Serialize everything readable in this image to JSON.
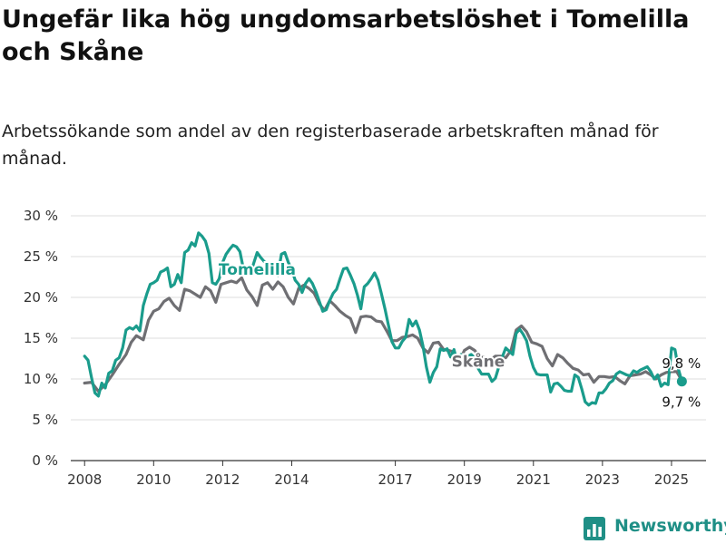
{
  "header": {
    "title": "Ungefär lika hög ungdomsarbetslöshet i Tomelilla och Skåne",
    "subtitle": "Arbetssökande som andel av den registerbaserade arbetskraften månad för månad."
  },
  "brand": {
    "name": "Newsworthy",
    "icon": "bar-chart-icon",
    "color": "#1f8f86"
  },
  "chart_data": {
    "type": "line",
    "y_ticks": [
      "0 %",
      "5 %",
      "10 %",
      "15 %",
      "20 %",
      "25 %",
      "30 %"
    ],
    "y_tick_values": [
      0,
      5,
      10,
      15,
      20,
      25,
      30
    ],
    "ylim": [
      0,
      30
    ],
    "x_ticks": [
      "2008",
      "2010",
      "2012",
      "2014",
      "2017",
      "2019",
      "2021",
      "2023",
      "2025"
    ],
    "x_tick_values": [
      2008.0,
      2010.0,
      2012.0,
      2014.0,
      2017.0,
      2019.0,
      2021.0,
      2023.0,
      2025.0
    ],
    "xlim": [
      2007.6,
      2026.0
    ],
    "grid": true,
    "series": [
      {
        "name": "Skåne",
        "color": "#6f6f73",
        "points": [
          [
            2008.0,
            9.5
          ],
          [
            2008.2,
            9.6
          ],
          [
            2008.4,
            8.5
          ],
          [
            2008.6,
            9.3
          ],
          [
            2008.8,
            10.5
          ],
          [
            2009.0,
            11.8
          ],
          [
            2009.2,
            13.0
          ],
          [
            2009.35,
            14.5
          ],
          [
            2009.5,
            15.3
          ],
          [
            2009.7,
            14.8
          ],
          [
            2009.85,
            17.2
          ],
          [
            2010.0,
            18.3
          ],
          [
            2010.15,
            18.6
          ],
          [
            2010.3,
            19.5
          ],
          [
            2010.45,
            19.9
          ],
          [
            2010.6,
            19.0
          ],
          [
            2010.75,
            18.4
          ],
          [
            2010.9,
            21.0
          ],
          [
            2011.05,
            20.8
          ],
          [
            2011.2,
            20.4
          ],
          [
            2011.35,
            20.0
          ],
          [
            2011.5,
            21.3
          ],
          [
            2011.65,
            20.8
          ],
          [
            2011.8,
            19.4
          ],
          [
            2011.95,
            21.6
          ],
          [
            2012.1,
            21.8
          ],
          [
            2012.25,
            22.0
          ],
          [
            2012.4,
            21.8
          ],
          [
            2012.55,
            22.4
          ],
          [
            2012.7,
            20.9
          ],
          [
            2012.85,
            20.1
          ],
          [
            2013.0,
            19.0
          ],
          [
            2013.15,
            21.5
          ],
          [
            2013.3,
            21.8
          ],
          [
            2013.45,
            21.0
          ],
          [
            2013.6,
            21.9
          ],
          [
            2013.75,
            21.3
          ],
          [
            2013.9,
            20.0
          ],
          [
            2014.05,
            19.2
          ],
          [
            2014.2,
            21.1
          ],
          [
            2014.35,
            21.5
          ],
          [
            2014.5,
            21.1
          ],
          [
            2014.65,
            20.5
          ],
          [
            2014.8,
            19.2
          ],
          [
            2014.95,
            18.4
          ],
          [
            2015.1,
            19.6
          ],
          [
            2015.25,
            19.0
          ],
          [
            2015.4,
            18.3
          ],
          [
            2015.55,
            17.8
          ],
          [
            2015.7,
            17.4
          ],
          [
            2015.85,
            15.7
          ],
          [
            2016.0,
            17.6
          ],
          [
            2016.15,
            17.7
          ],
          [
            2016.3,
            17.6
          ],
          [
            2016.45,
            17.1
          ],
          [
            2016.6,
            17.0
          ],
          [
            2016.75,
            15.9
          ],
          [
            2016.9,
            14.7
          ],
          [
            2017.05,
            14.7
          ],
          [
            2017.2,
            15.1
          ],
          [
            2017.35,
            15.2
          ],
          [
            2017.5,
            15.4
          ],
          [
            2017.65,
            15.0
          ],
          [
            2017.8,
            13.8
          ],
          [
            2017.95,
            13.2
          ],
          [
            2018.1,
            14.4
          ],
          [
            2018.25,
            14.5
          ],
          [
            2018.4,
            13.6
          ],
          [
            2018.55,
            13.5
          ],
          [
            2018.7,
            13.3
          ],
          [
            2018.85,
            12.1
          ],
          [
            2019.0,
            13.5
          ],
          [
            2019.15,
            13.9
          ],
          [
            2019.3,
            13.5
          ],
          [
            2019.45,
            12.7
          ],
          [
            2019.6,
            12.6
          ],
          [
            2019.75,
            12.3
          ],
          [
            2019.9,
            12.8
          ],
          [
            2020.05,
            12.8
          ],
          [
            2020.2,
            12.6
          ],
          [
            2020.35,
            13.5
          ],
          [
            2020.5,
            16.0
          ],
          [
            2020.65,
            16.5
          ],
          [
            2020.8,
            15.8
          ],
          [
            2020.95,
            14.5
          ],
          [
            2021.1,
            14.3
          ],
          [
            2021.25,
            14.0
          ],
          [
            2021.4,
            12.5
          ],
          [
            2021.55,
            11.6
          ],
          [
            2021.7,
            13.0
          ],
          [
            2021.85,
            12.6
          ],
          [
            2022.0,
            11.9
          ],
          [
            2022.15,
            11.3
          ],
          [
            2022.3,
            11.1
          ],
          [
            2022.45,
            10.5
          ],
          [
            2022.6,
            10.6
          ],
          [
            2022.75,
            9.6
          ],
          [
            2022.9,
            10.3
          ],
          [
            2023.05,
            10.3
          ],
          [
            2023.2,
            10.2
          ],
          [
            2023.35,
            10.3
          ],
          [
            2023.5,
            9.8
          ],
          [
            2023.65,
            9.4
          ],
          [
            2023.8,
            10.4
          ],
          [
            2023.95,
            10.5
          ],
          [
            2024.1,
            10.6
          ],
          [
            2024.25,
            10.9
          ],
          [
            2024.4,
            10.5
          ],
          [
            2024.55,
            10.0
          ],
          [
            2024.7,
            10.5
          ],
          [
            2024.85,
            10.8
          ],
          [
            2025.0,
            10.9
          ],
          [
            2025.15,
            10.9
          ],
          [
            2025.3,
            9.8
          ]
        ]
      },
      {
        "name": "Tomelilla",
        "color": "#1a9c8c",
        "points": [
          [
            2008.0,
            12.8
          ],
          [
            2008.1,
            12.3
          ],
          [
            2008.2,
            10.2
          ],
          [
            2008.3,
            8.3
          ],
          [
            2008.4,
            7.9
          ],
          [
            2008.5,
            9.5
          ],
          [
            2008.6,
            8.9
          ],
          [
            2008.7,
            10.7
          ],
          [
            2008.8,
            11.0
          ],
          [
            2008.9,
            12.3
          ],
          [
            2009.0,
            12.6
          ],
          [
            2009.1,
            13.8
          ],
          [
            2009.2,
            16.0
          ],
          [
            2009.3,
            16.3
          ],
          [
            2009.4,
            16.1
          ],
          [
            2009.5,
            16.5
          ],
          [
            2009.6,
            15.9
          ],
          [
            2009.7,
            19.0
          ],
          [
            2009.8,
            20.4
          ],
          [
            2009.9,
            21.6
          ],
          [
            2010.0,
            21.8
          ],
          [
            2010.1,
            22.1
          ],
          [
            2010.2,
            23.1
          ],
          [
            2010.3,
            23.3
          ],
          [
            2010.4,
            23.6
          ],
          [
            2010.5,
            21.3
          ],
          [
            2010.6,
            21.6
          ],
          [
            2010.7,
            22.8
          ],
          [
            2010.8,
            21.8
          ],
          [
            2010.9,
            25.5
          ],
          [
            2011.0,
            25.8
          ],
          [
            2011.1,
            26.7
          ],
          [
            2011.2,
            26.3
          ],
          [
            2011.3,
            27.9
          ],
          [
            2011.4,
            27.5
          ],
          [
            2011.5,
            26.9
          ],
          [
            2011.6,
            25.4
          ],
          [
            2011.7,
            21.8
          ],
          [
            2011.8,
            21.6
          ],
          [
            2011.9,
            22.3
          ],
          [
            2012.0,
            24.3
          ],
          [
            2012.1,
            25.3
          ],
          [
            2012.2,
            25.9
          ],
          [
            2012.3,
            26.4
          ],
          [
            2012.4,
            26.2
          ],
          [
            2012.5,
            25.6
          ],
          [
            2012.6,
            23.5
          ],
          [
            2012.7,
            23.4
          ],
          [
            2012.8,
            22.8
          ],
          [
            2012.9,
            24.2
          ],
          [
            2013.0,
            25.5
          ],
          [
            2013.1,
            24.9
          ],
          [
            2013.2,
            24.4
          ],
          [
            2013.3,
            24.1
          ],
          [
            2013.4,
            23.1
          ],
          [
            2013.5,
            23.0
          ],
          [
            2013.6,
            22.7
          ],
          [
            2013.7,
            25.3
          ],
          [
            2013.8,
            25.5
          ],
          [
            2013.9,
            24.3
          ],
          [
            2014.0,
            23.4
          ],
          [
            2014.1,
            22.1
          ],
          [
            2014.2,
            21.6
          ],
          [
            2014.3,
            20.6
          ],
          [
            2014.4,
            21.7
          ],
          [
            2014.5,
            22.3
          ],
          [
            2014.6,
            21.7
          ],
          [
            2014.7,
            20.7
          ],
          [
            2014.8,
            19.5
          ],
          [
            2014.9,
            18.3
          ],
          [
            2015.0,
            18.5
          ],
          [
            2015.1,
            19.6
          ],
          [
            2015.2,
            20.5
          ],
          [
            2015.3,
            21.0
          ],
          [
            2015.4,
            22.3
          ],
          [
            2015.5,
            23.5
          ],
          [
            2015.6,
            23.6
          ],
          [
            2015.7,
            22.7
          ],
          [
            2015.8,
            21.7
          ],
          [
            2015.9,
            20.3
          ],
          [
            2016.0,
            18.6
          ],
          [
            2016.1,
            21.3
          ],
          [
            2016.2,
            21.7
          ],
          [
            2016.3,
            22.3
          ],
          [
            2016.4,
            23.0
          ],
          [
            2016.5,
            22.1
          ],
          [
            2016.6,
            20.4
          ],
          [
            2016.7,
            18.6
          ],
          [
            2016.8,
            16.6
          ],
          [
            2016.9,
            14.6
          ],
          [
            2017.0,
            13.8
          ],
          [
            2017.1,
            13.8
          ],
          [
            2017.2,
            14.6
          ],
          [
            2017.3,
            15.1
          ],
          [
            2017.4,
            17.3
          ],
          [
            2017.5,
            16.5
          ],
          [
            2017.6,
            17.1
          ],
          [
            2017.7,
            16.0
          ],
          [
            2017.8,
            14.1
          ],
          [
            2017.9,
            11.5
          ],
          [
            2018.0,
            9.6
          ],
          [
            2018.1,
            10.8
          ],
          [
            2018.2,
            11.5
          ],
          [
            2018.3,
            13.7
          ],
          [
            2018.4,
            13.5
          ],
          [
            2018.5,
            13.7
          ],
          [
            2018.6,
            12.7
          ],
          [
            2018.7,
            13.6
          ],
          [
            2018.8,
            11.9
          ],
          [
            2018.9,
            13.0
          ],
          [
            2019.0,
            12.6
          ],
          [
            2019.1,
            12.8
          ],
          [
            2019.2,
            13.0
          ],
          [
            2019.3,
            12.6
          ],
          [
            2019.4,
            11.3
          ],
          [
            2019.5,
            10.6
          ],
          [
            2019.6,
            10.6
          ],
          [
            2019.7,
            10.6
          ],
          [
            2019.8,
            9.7
          ],
          [
            2019.9,
            10.1
          ],
          [
            2020.0,
            11.5
          ],
          [
            2020.1,
            12.7
          ],
          [
            2020.2,
            13.8
          ],
          [
            2020.3,
            13.4
          ],
          [
            2020.4,
            13.0
          ],
          [
            2020.5,
            15.6
          ],
          [
            2020.6,
            16.1
          ],
          [
            2020.7,
            15.5
          ],
          [
            2020.8,
            14.7
          ],
          [
            2020.9,
            12.8
          ],
          [
            2021.0,
            11.4
          ],
          [
            2021.1,
            10.6
          ],
          [
            2021.2,
            10.5
          ],
          [
            2021.3,
            10.5
          ],
          [
            2021.4,
            10.5
          ],
          [
            2021.5,
            8.4
          ],
          [
            2021.6,
            9.4
          ],
          [
            2021.7,
            9.5
          ],
          [
            2021.8,
            9.1
          ],
          [
            2021.9,
            8.6
          ],
          [
            2022.0,
            8.5
          ],
          [
            2022.1,
            8.5
          ],
          [
            2022.2,
            10.5
          ],
          [
            2022.3,
            10.2
          ],
          [
            2022.4,
            8.8
          ],
          [
            2022.5,
            7.2
          ],
          [
            2022.6,
            6.8
          ],
          [
            2022.7,
            7.1
          ],
          [
            2022.8,
            7.0
          ],
          [
            2022.9,
            8.3
          ],
          [
            2023.0,
            8.3
          ],
          [
            2023.1,
            8.8
          ],
          [
            2023.2,
            9.5
          ],
          [
            2023.3,
            9.8
          ],
          [
            2023.4,
            10.6
          ],
          [
            2023.5,
            10.9
          ],
          [
            2023.6,
            10.7
          ],
          [
            2023.7,
            10.5
          ],
          [
            2023.8,
            10.4
          ],
          [
            2023.9,
            11.0
          ],
          [
            2024.0,
            10.8
          ],
          [
            2024.1,
            11.1
          ],
          [
            2024.2,
            11.3
          ],
          [
            2024.3,
            11.5
          ],
          [
            2024.4,
            10.9
          ],
          [
            2024.5,
            10.0
          ],
          [
            2024.6,
            10.5
          ],
          [
            2024.7,
            9.1
          ],
          [
            2024.8,
            9.5
          ],
          [
            2024.9,
            9.3
          ],
          [
            2025.0,
            13.8
          ],
          [
            2025.1,
            13.6
          ],
          [
            2025.2,
            11.2
          ],
          [
            2025.3,
            9.7
          ]
        ]
      }
    ],
    "labels": [
      {
        "series": "Tomelilla",
        "text": "Tomelilla",
        "x": 2013.0,
        "y": 22.8
      },
      {
        "series": "Skåne",
        "text": "Skåne",
        "x": 2019.4,
        "y": 11.5
      }
    ],
    "end_values": [
      {
        "series": "Skåne",
        "text": "9,8 %",
        "x": 2025.3,
        "y": 9.8
      },
      {
        "series": "Tomelilla",
        "text": "9,7 %",
        "x": 2025.3,
        "y": 9.7
      }
    ]
  }
}
